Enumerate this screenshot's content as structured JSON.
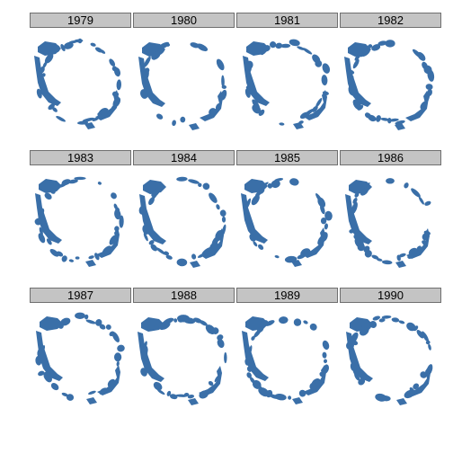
{
  "panels": [
    {
      "year": "1979"
    },
    {
      "year": "1980"
    },
    {
      "year": "1981"
    },
    {
      "year": "1982"
    },
    {
      "year": "1983"
    },
    {
      "year": "1984"
    },
    {
      "year": "1985"
    },
    {
      "year": "1986"
    },
    {
      "year": "1987"
    },
    {
      "year": "1988"
    },
    {
      "year": "1989"
    },
    {
      "year": "1990"
    }
  ],
  "colors": {
    "ice": "#3a6fa8",
    "strip_bg": "#c4c4c4",
    "strip_border": "#6f6f6f"
  }
}
